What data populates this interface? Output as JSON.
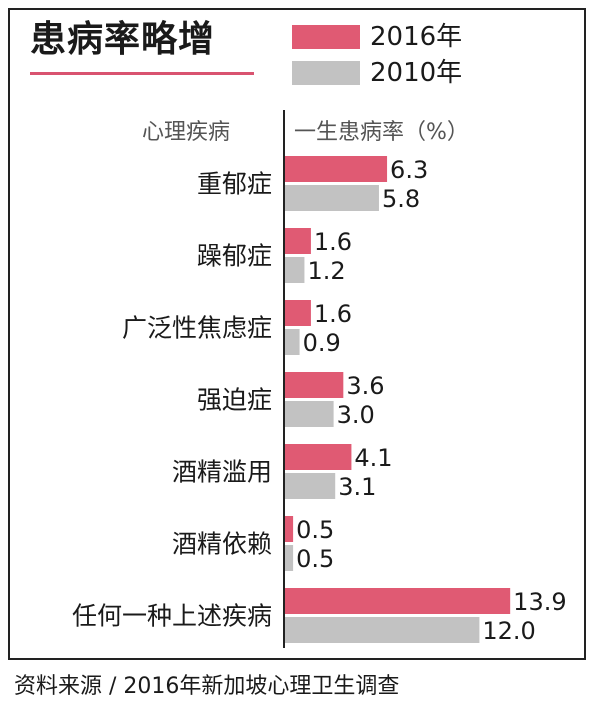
{
  "header": {
    "title": "患病率略增"
  },
  "column_headers": {
    "left": "心理疾病",
    "right": "一生患病率（%）"
  },
  "source": "资料来源 / 2016年新加坡心理卫生调查",
  "chart_data": {
    "type": "bar",
    "orientation": "horizontal",
    "title": "患病率略增",
    "ylabel": "心理疾病",
    "xlabel": "一生患病率（%）",
    "categories": [
      "重郁症",
      "躁郁症",
      "广泛性焦虑症",
      "强迫症",
      "酒精滥用",
      "酒精依赖",
      "任何一种上述疾病"
    ],
    "series": [
      {
        "name": "2016年",
        "color": "#e05a73",
        "values": [
          6.3,
          1.6,
          1.6,
          3.6,
          4.1,
          0.5,
          13.9
        ]
      },
      {
        "name": "2010年",
        "color": "#c2c2c2",
        "values": [
          5.8,
          1.2,
          0.9,
          3.0,
          3.1,
          0.5,
          12.0
        ]
      }
    ],
    "value_labels": [
      [
        "6.3",
        "1.6",
        "1.6",
        "3.6",
        "4.1",
        "0.5",
        "13.9"
      ],
      [
        "5.8",
        "1.2",
        "0.9",
        "3.0",
        "3.1",
        "0.5",
        "12.0"
      ]
    ],
    "xlim": [
      0,
      13.9
    ],
    "legend": "top-right",
    "grid": false
  }
}
